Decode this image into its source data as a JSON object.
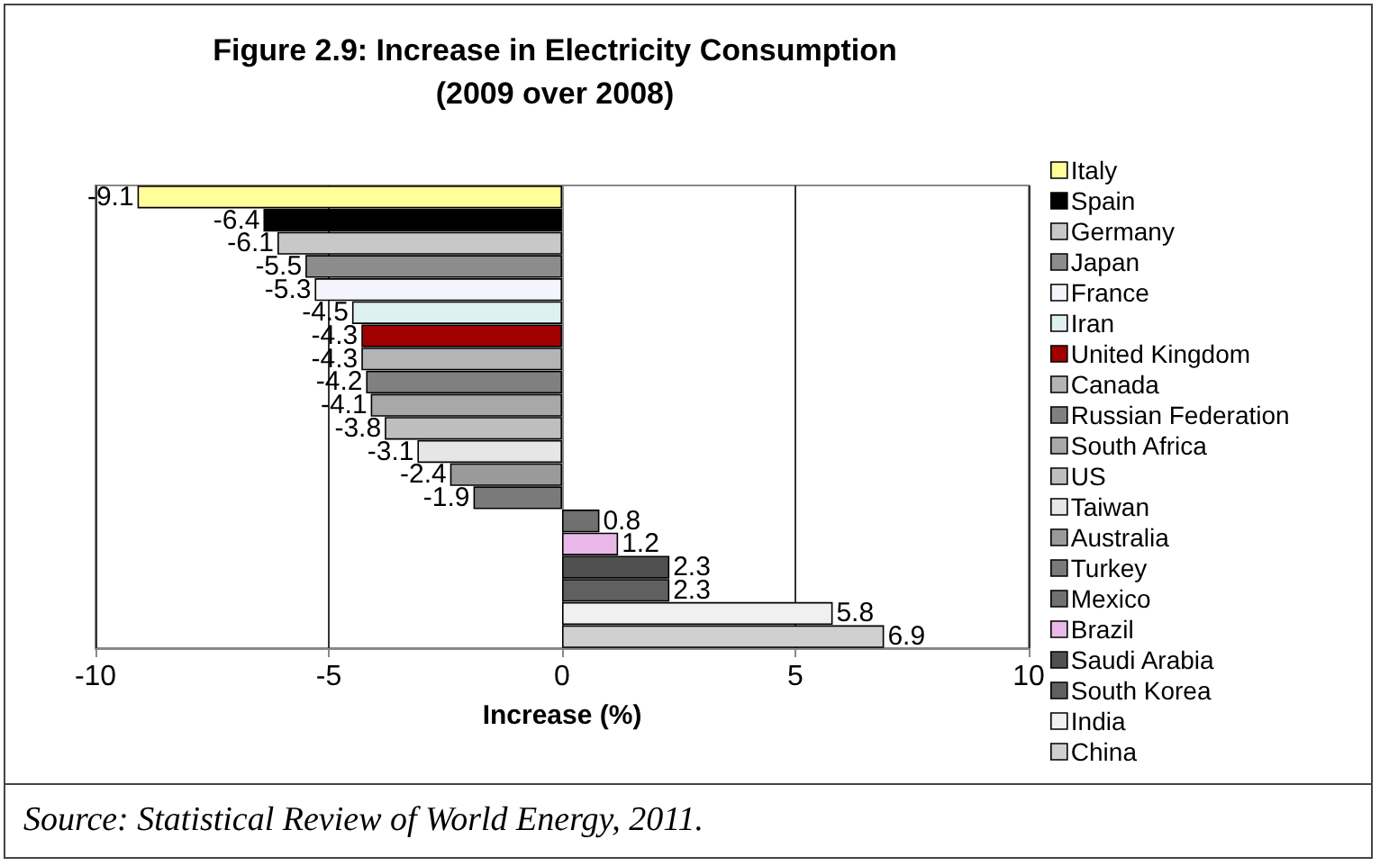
{
  "chart_data": {
    "type": "bar",
    "orientation": "horizontal",
    "title": "Figure 2.9: Increase in Electricity Consumption\n(2009 over 2008)",
    "xlabel": "Increase (%)",
    "categories": [
      null,
      null,
      null,
      null,
      null,
      null,
      null,
      null,
      null,
      null,
      null,
      null,
      null,
      null,
      null,
      null,
      null,
      null,
      null,
      null
    ],
    "series": [
      {
        "name": "Italy",
        "color": "#ffff99",
        "values": [
          -9.1,
          null,
          null,
          null,
          null,
          null,
          null,
          null,
          null,
          null,
          null,
          null,
          null,
          null,
          null,
          null,
          null,
          null,
          null,
          null
        ]
      },
      {
        "name": "Spain",
        "color": "#000000",
        "values": [
          null,
          -6.4,
          null,
          null,
          null,
          null,
          null,
          null,
          null,
          null,
          null,
          null,
          null,
          null,
          null,
          null,
          null,
          null,
          null,
          null
        ]
      },
      {
        "name": "Germany",
        "color": "#c8c8c8",
        "values": [
          null,
          null,
          -6.1,
          null,
          null,
          null,
          null,
          null,
          null,
          null,
          null,
          null,
          null,
          null,
          null,
          null,
          null,
          null,
          null,
          null
        ]
      },
      {
        "name": "Japan",
        "color": "#8c8c8c",
        "values": [
          null,
          null,
          null,
          -5.5,
          null,
          null,
          null,
          null,
          null,
          null,
          null,
          null,
          null,
          null,
          null,
          null,
          null,
          null,
          null,
          null
        ]
      },
      {
        "name": "France",
        "color": "#f4f4fc",
        "values": [
          null,
          null,
          null,
          null,
          -5.3,
          null,
          null,
          null,
          null,
          null,
          null,
          null,
          null,
          null,
          null,
          null,
          null,
          null,
          null,
          null
        ]
      },
      {
        "name": "Iran",
        "color": "#dff0f0",
        "values": [
          null,
          null,
          null,
          null,
          null,
          -4.5,
          null,
          null,
          null,
          null,
          null,
          null,
          null,
          null,
          null,
          null,
          null,
          null,
          null,
          null
        ]
      },
      {
        "name": "United Kingdom",
        "color": "#a00000",
        "values": [
          null,
          null,
          null,
          null,
          null,
          null,
          -4.3,
          null,
          null,
          null,
          null,
          null,
          null,
          null,
          null,
          null,
          null,
          null,
          null,
          null
        ]
      },
      {
        "name": "Canada",
        "color": "#b4b4b4",
        "values": [
          null,
          null,
          null,
          null,
          null,
          null,
          null,
          -4.3,
          null,
          null,
          null,
          null,
          null,
          null,
          null,
          null,
          null,
          null,
          null,
          null
        ]
      },
      {
        "name": "Russian Federation",
        "color": "#808080",
        "values": [
          null,
          null,
          null,
          null,
          null,
          null,
          null,
          null,
          -4.2,
          null,
          null,
          null,
          null,
          null,
          null,
          null,
          null,
          null,
          null,
          null
        ]
      },
      {
        "name": "South Africa",
        "color": "#a8a8a8",
        "values": [
          null,
          null,
          null,
          null,
          null,
          null,
          null,
          null,
          null,
          -4.1,
          null,
          null,
          null,
          null,
          null,
          null,
          null,
          null,
          null,
          null
        ]
      },
      {
        "name": "US",
        "color": "#bebebe",
        "values": [
          null,
          null,
          null,
          null,
          null,
          null,
          null,
          null,
          null,
          null,
          -3.8,
          null,
          null,
          null,
          null,
          null,
          null,
          null,
          null,
          null
        ]
      },
      {
        "name": "Taiwan",
        "color": "#e6e6e6",
        "values": [
          null,
          null,
          null,
          null,
          null,
          null,
          null,
          null,
          null,
          null,
          null,
          -3.1,
          null,
          null,
          null,
          null,
          null,
          null,
          null,
          null
        ]
      },
      {
        "name": "Australia",
        "color": "#9a9a9a",
        "values": [
          null,
          null,
          null,
          null,
          null,
          null,
          null,
          null,
          null,
          null,
          null,
          null,
          -2.4,
          null,
          null,
          null,
          null,
          null,
          null,
          null
        ]
      },
      {
        "name": "Turkey",
        "color": "#7a7a7a",
        "values": [
          null,
          null,
          null,
          null,
          null,
          null,
          null,
          null,
          null,
          null,
          null,
          null,
          null,
          -1.9,
          null,
          null,
          null,
          null,
          null,
          null
        ]
      },
      {
        "name": "Mexico",
        "color": "#707070",
        "values": [
          null,
          null,
          null,
          null,
          null,
          null,
          null,
          null,
          null,
          null,
          null,
          null,
          null,
          null,
          0.8,
          null,
          null,
          null,
          null,
          null
        ]
      },
      {
        "name": "Brazil",
        "color": "#e8b8e8",
        "values": [
          null,
          null,
          null,
          null,
          null,
          null,
          null,
          null,
          null,
          null,
          null,
          null,
          null,
          null,
          null,
          1.2,
          null,
          null,
          null,
          null
        ]
      },
      {
        "name": "Saudi Arabia",
        "color": "#505050",
        "values": [
          null,
          null,
          null,
          null,
          null,
          null,
          null,
          null,
          null,
          null,
          null,
          null,
          null,
          null,
          null,
          null,
          2.3,
          null,
          null,
          null
        ]
      },
      {
        "name": "South Korea",
        "color": "#606060",
        "values": [
          null,
          null,
          null,
          null,
          null,
          null,
          null,
          null,
          null,
          null,
          null,
          null,
          null,
          null,
          null,
          null,
          null,
          2.3,
          null,
          null
        ]
      },
      {
        "name": "India",
        "color": "#f0f0f0",
        "values": [
          null,
          null,
          null,
          null,
          null,
          null,
          null,
          null,
          null,
          null,
          null,
          null,
          null,
          null,
          null,
          null,
          null,
          null,
          5.8,
          null
        ]
      },
      {
        "name": "China",
        "color": "#d0d0d0",
        "values": [
          null,
          null,
          null,
          null,
          null,
          null,
          null,
          null,
          null,
          null,
          null,
          null,
          null,
          null,
          null,
          null,
          null,
          null,
          null,
          6.9
        ]
      }
    ],
    "xlim": [
      -10,
      10
    ],
    "xticks": [
      -10,
      -5,
      0,
      5,
      10
    ],
    "grid": "x",
    "legend": "right",
    "data_labels": true,
    "annotations": [
      "Source: Statistical Review of World Energy, 2011."
    ]
  }
}
